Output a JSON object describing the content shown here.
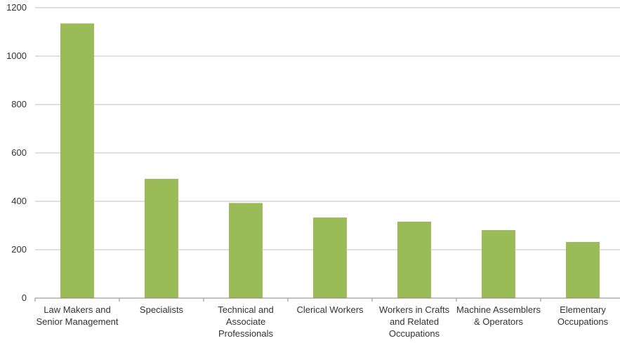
{
  "chart_data": {
    "type": "bar",
    "title": "",
    "xlabel": "",
    "ylabel": "",
    "categories": [
      "Law Makers and Senior Management",
      "Specialists",
      "Technical and Associate Professionals",
      "Clerical Workers",
      "Workers in Crafts and Related Occupations",
      "Machine Assemblers & Operators",
      "Elementary Occupations"
    ],
    "category_label_lines": [
      [
        "Law Makers and",
        "Senior Management"
      ],
      [
        "Specialists"
      ],
      [
        "Technical and",
        "Associate",
        "Professionals"
      ],
      [
        "Clerical Workers"
      ],
      [
        "Workers in Crafts",
        "and Related",
        "Occupations"
      ],
      [
        "Machine Assemblers",
        "& Operators"
      ],
      [
        "Elementary",
        "Occupations"
      ]
    ],
    "values": [
      1135,
      493,
      393,
      333,
      316,
      281,
      232
    ],
    "ylim": [
      0,
      1200
    ],
    "yticks": [
      0,
      200,
      400,
      600,
      800,
      1000,
      1200
    ],
    "grid": true,
    "legend": "none",
    "colors": {
      "bar": "#9BBB59",
      "grid": "#BFBFBF",
      "axis": "#868686"
    }
  }
}
